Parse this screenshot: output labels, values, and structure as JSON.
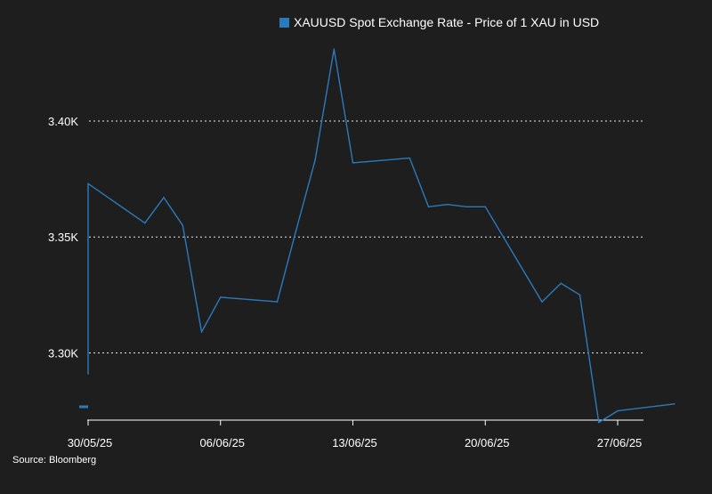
{
  "chart_data": {
    "type": "line",
    "legend": {
      "label": "XAUUSD Spot Exchange Rate - Price of 1 XAU in USD",
      "position": "top-center"
    },
    "source": "Source: Bloomberg",
    "x": [
      "2025-05-29",
      "2025-05-30",
      "2025-06-02",
      "2025-06-03",
      "2025-06-04",
      "2025-06-05",
      "2025-06-06",
      "2025-06-09",
      "2025-06-10",
      "2025-06-11",
      "2025-06-12",
      "2025-06-13",
      "2025-06-16",
      "2025-06-17",
      "2025-06-18",
      "2025-06-19",
      "2025-06-20",
      "2025-06-23",
      "2025-06-24",
      "2025-06-25",
      "2025-06-26",
      "2025-06-27",
      "2025-06-30"
    ],
    "x_ticks": [
      "30/05/25",
      "06/06/25",
      "13/06/25",
      "20/06/25",
      "27/06/25"
    ],
    "x_tick_dates": [
      "2025-05-30",
      "2025-06-06",
      "2025-06-13",
      "2025-06-20",
      "2025-06-27"
    ],
    "series": [
      {
        "name": "XAUUSD Spot Exchange Rate - Price of 1 XAU in USD",
        "color": "#2a7bbd",
        "values": [
          3291,
          3373,
          3356,
          3367,
          3355,
          3309,
          3324,
          3322,
          3353,
          3383,
          3431,
          3382,
          3384,
          3363,
          3364,
          3363,
          3363,
          3322,
          3330,
          3325,
          3270,
          3275,
          3278
        ]
      }
    ],
    "yticks": [
      3300,
      3350,
      3400
    ],
    "ytick_labels": [
      "3.30K",
      "3.35K",
      "3.40K"
    ],
    "ylim": [
      3271,
      3433
    ],
    "grid": "horizontal-dotted",
    "title": "",
    "xlabel": "",
    "ylabel": ""
  }
}
